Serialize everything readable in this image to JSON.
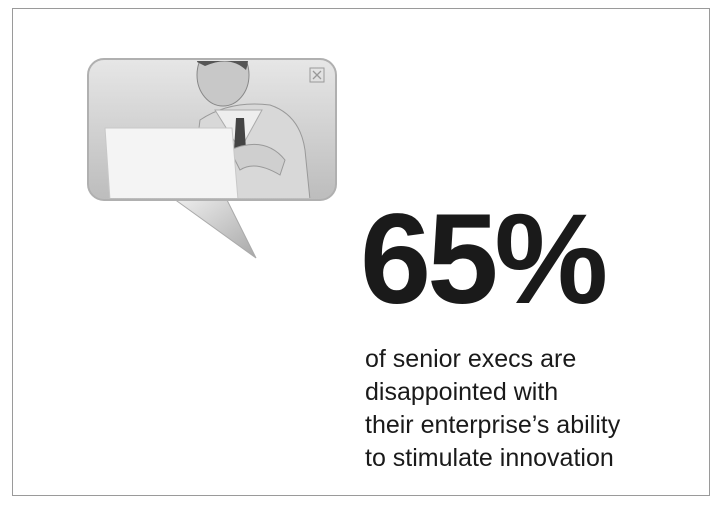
{
  "headline": "65%",
  "caption": [
    "of senior execs are",
    "disappointed with",
    "their enterprise’s ability",
    "to stimulate innovation"
  ]
}
